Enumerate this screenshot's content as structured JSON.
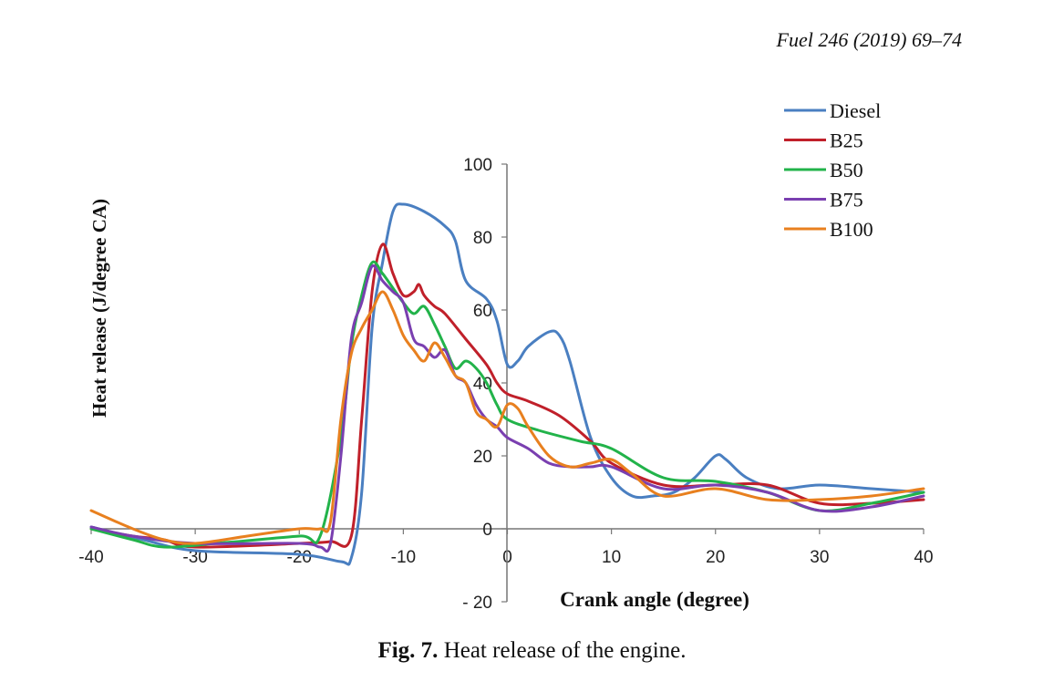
{
  "header": {
    "journal": "Fuel 246 (2019) 69–74"
  },
  "caption": {
    "label": "Fig. 7.",
    "text": "Heat release of the engine."
  },
  "colors": {
    "Diesel": "#4a7fc1",
    "B25": "#c0202a",
    "B50": "#22b34a",
    "B75": "#7a3fb0",
    "B100": "#e8801f"
  },
  "chart_data": {
    "type": "line",
    "title": "",
    "xlabel": "Crank angle (degree)",
    "ylabel": "Heat release (J/degree CA)",
    "xlim": [
      -40,
      40
    ],
    "ylim": [
      -20,
      100
    ],
    "xticks": [
      -40,
      -30,
      -20,
      -10,
      0,
      10,
      20,
      30,
      40
    ],
    "yticks": [
      -20,
      0,
      20,
      40,
      60,
      80,
      100
    ],
    "xtick_labels": [
      "-40",
      "-30",
      "-20",
      "-10",
      "0",
      "10",
      "20",
      "30",
      "40"
    ],
    "ytick_labels": [
      "- 20",
      "0",
      "20",
      "40",
      "60",
      "80",
      "100"
    ],
    "grid": false,
    "legend_position": "top-right",
    "series": [
      {
        "name": "Diesel",
        "points": [
          [
            -40,
            0.5
          ],
          [
            -35,
            -3
          ],
          [
            -30,
            -6
          ],
          [
            -20,
            -7
          ],
          [
            -16,
            -9
          ],
          [
            -15,
            -8
          ],
          [
            -14,
            10
          ],
          [
            -13,
            55
          ],
          [
            -12,
            73
          ],
          [
            -11,
            87
          ],
          [
            -10,
            89
          ],
          [
            -8,
            87
          ],
          [
            -6,
            83
          ],
          [
            -5,
            79
          ],
          [
            -4,
            68
          ],
          [
            -2,
            63
          ],
          [
            -1,
            57
          ],
          [
            0,
            45
          ],
          [
            1,
            46
          ],
          [
            2,
            50
          ],
          [
            4,
            54
          ],
          [
            5,
            53
          ],
          [
            6,
            46
          ],
          [
            8,
            25
          ],
          [
            10,
            14
          ],
          [
            12,
            9
          ],
          [
            14,
            9
          ],
          [
            16,
            10
          ],
          [
            18,
            14
          ],
          [
            20,
            20
          ],
          [
            21,
            19
          ],
          [
            23,
            14
          ],
          [
            26,
            11
          ],
          [
            30,
            12
          ],
          [
            35,
            11
          ],
          [
            40,
            10
          ]
        ]
      },
      {
        "name": "B25",
        "points": [
          [
            -40,
            0
          ],
          [
            -36,
            -2
          ],
          [
            -33,
            -3
          ],
          [
            -30,
            -5
          ],
          [
            -20,
            -4
          ],
          [
            -17,
            -3.5
          ],
          [
            -15,
            -2
          ],
          [
            -14,
            30
          ],
          [
            -13,
            65
          ],
          [
            -12,
            78
          ],
          [
            -11,
            70
          ],
          [
            -10,
            64
          ],
          [
            -9,
            65
          ],
          [
            -8.5,
            67
          ],
          [
            -8,
            64
          ],
          [
            -7,
            61
          ],
          [
            -6,
            59
          ],
          [
            -4,
            52
          ],
          [
            -2,
            45
          ],
          [
            -1,
            40
          ],
          [
            0,
            37
          ],
          [
            2,
            35
          ],
          [
            5,
            31
          ],
          [
            8,
            24
          ],
          [
            10,
            18
          ],
          [
            15,
            12
          ],
          [
            20,
            12
          ],
          [
            25,
            12
          ],
          [
            30,
            7
          ],
          [
            35,
            7
          ],
          [
            40,
            8
          ]
        ]
      },
      {
        "name": "B50",
        "points": [
          [
            -40,
            0
          ],
          [
            -36,
            -3
          ],
          [
            -33,
            -5
          ],
          [
            -28,
            -4
          ],
          [
            -20,
            -2
          ],
          [
            -18,
            -2
          ],
          [
            -16,
            25
          ],
          [
            -15,
            50
          ],
          [
            -14,
            64
          ],
          [
            -13,
            73
          ],
          [
            -12,
            70
          ],
          [
            -11,
            66
          ],
          [
            -10,
            62
          ],
          [
            -9,
            59
          ],
          [
            -8,
            61
          ],
          [
            -7,
            56
          ],
          [
            -6,
            50
          ],
          [
            -5,
            44
          ],
          [
            -4,
            46
          ],
          [
            -3,
            44
          ],
          [
            -2,
            40
          ],
          [
            -1,
            34
          ],
          [
            0,
            30
          ],
          [
            3,
            27
          ],
          [
            7,
            24
          ],
          [
            10,
            22
          ],
          [
            15,
            14
          ],
          [
            20,
            13
          ],
          [
            25,
            10
          ],
          [
            30,
            5
          ],
          [
            35,
            7
          ],
          [
            40,
            10
          ]
        ]
      },
      {
        "name": "B75",
        "points": [
          [
            -40,
            0.5
          ],
          [
            -36,
            -2
          ],
          [
            -30,
            -4
          ],
          [
            -20,
            -4
          ],
          [
            -18,
            -5
          ],
          [
            -17,
            -4
          ],
          [
            -16,
            20
          ],
          [
            -15,
            52
          ],
          [
            -14,
            62
          ],
          [
            -13,
            72
          ],
          [
            -12,
            68
          ],
          [
            -11,
            65
          ],
          [
            -10,
            62
          ],
          [
            -9,
            52
          ],
          [
            -8,
            50
          ],
          [
            -7,
            47
          ],
          [
            -6,
            49
          ],
          [
            -5,
            42
          ],
          [
            -4,
            40
          ],
          [
            -3,
            34
          ],
          [
            -2,
            30
          ],
          [
            -1,
            28
          ],
          [
            0,
            25
          ],
          [
            2,
            22
          ],
          [
            4,
            18
          ],
          [
            6,
            17
          ],
          [
            8,
            17
          ],
          [
            10,
            17
          ],
          [
            15,
            11
          ],
          [
            20,
            12
          ],
          [
            25,
            10
          ],
          [
            30,
            5
          ],
          [
            35,
            6
          ],
          [
            40,
            9
          ]
        ]
      },
      {
        "name": "B100",
        "points": [
          [
            -40,
            5
          ],
          [
            -36,
            0
          ],
          [
            -33,
            -3
          ],
          [
            -30,
            -4
          ],
          [
            -25,
            -2
          ],
          [
            -20,
            0
          ],
          [
            -18,
            0
          ],
          [
            -17,
            2
          ],
          [
            -16,
            30
          ],
          [
            -15,
            48
          ],
          [
            -14,
            55
          ],
          [
            -13,
            60
          ],
          [
            -12,
            65
          ],
          [
            -11,
            60
          ],
          [
            -10,
            53
          ],
          [
            -9,
            49
          ],
          [
            -8,
            46
          ],
          [
            -7,
            51
          ],
          [
            -6,
            47
          ],
          [
            -5,
            42
          ],
          [
            -4,
            40
          ],
          [
            -3,
            32
          ],
          [
            -2,
            30
          ],
          [
            -1,
            28
          ],
          [
            0,
            34
          ],
          [
            1,
            33
          ],
          [
            2,
            28
          ],
          [
            4,
            20
          ],
          [
            6,
            17
          ],
          [
            8,
            18
          ],
          [
            10,
            19
          ],
          [
            12,
            15
          ],
          [
            15,
            9
          ],
          [
            20,
            11
          ],
          [
            25,
            8
          ],
          [
            30,
            8
          ],
          [
            35,
            9
          ],
          [
            40,
            11
          ]
        ]
      }
    ]
  }
}
